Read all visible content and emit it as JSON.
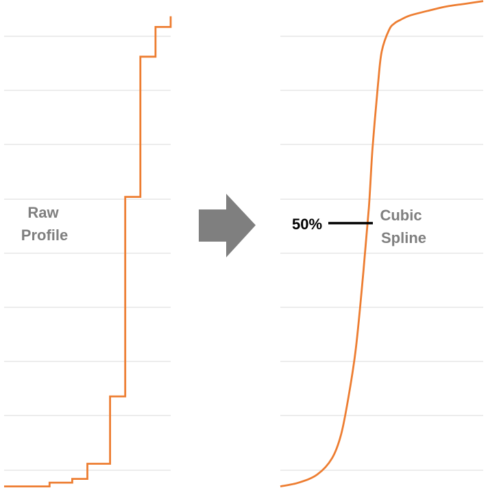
{
  "chart_data": [
    {
      "type": "line",
      "step": true,
      "annotation_lines": [
        "Raw",
        "Profile"
      ],
      "grid": true,
      "ylim": [
        0,
        9
      ],
      "series": [
        {
          "color": "#ED7D31",
          "x": [
            0,
            1.5,
            3,
            4.5,
            5.5,
            7,
            8,
            9,
            10,
            11
          ],
          "y": [
            0.03,
            0.03,
            0.1,
            0.17,
            0.45,
            1.7,
            5.4,
            8.0,
            8.55,
            8.75
          ]
        }
      ]
    },
    {
      "type": "line",
      "grid": true,
      "ylim": [
        0,
        9
      ],
      "annotation_lines": [
        "Cubic",
        "Spline"
      ],
      "marker_label": "50%",
      "series": [
        {
          "color": "#ED7D31",
          "x": [
            0,
            1,
            2,
            2.8,
            3.3,
            3.7,
            4.1,
            4.5,
            4.8,
            5.0,
            5.3,
            5.5,
            5.9,
            6.2,
            6.5,
            7,
            8,
            9,
            10,
            11
          ],
          "y": [
            0.03,
            0.1,
            0.25,
            0.55,
            1.0,
            1.7,
            2.6,
            4.0,
            5.2,
            6.3,
            7.5,
            8.1,
            8.5,
            8.62,
            8.68,
            8.76,
            8.85,
            8.93,
            8.98,
            9.03
          ]
        }
      ]
    }
  ],
  "arrow": {
    "color": "#7F7F7F"
  }
}
